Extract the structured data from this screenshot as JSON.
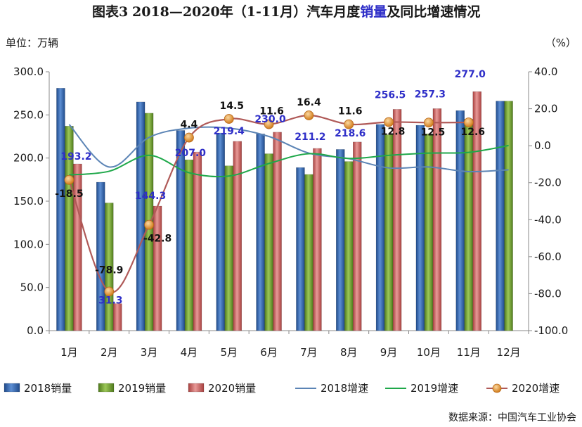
{
  "chart_data": {
    "type": "bar",
    "title": {
      "prefix": "图表3",
      "main": "2018—2020年（1-11月）汽车月度",
      "highlight": "销量",
      "suffix": "及同比增速情况"
    },
    "left_unit": "单位：万辆",
    "right_unit": "（%）",
    "categories": [
      "1月",
      "2月",
      "3月",
      "4月",
      "5月",
      "6月",
      "7月",
      "8月",
      "9月",
      "10月",
      "11月",
      "12月"
    ],
    "y_left": {
      "min": 0,
      "max": 300,
      "step": 50,
      "ticks": [
        "0.0",
        "50.0",
        "100.0",
        "150.0",
        "200.0",
        "250.0",
        "300.0"
      ]
    },
    "y_right": {
      "min": -100,
      "max": 40,
      "step": 20,
      "ticks": [
        "-100.0",
        "-80.0",
        "-60.0",
        "-40.0",
        "-20.0",
        "0.0",
        "20.0",
        "40.0"
      ]
    },
    "bar_series": [
      {
        "name": "2018销量",
        "color": "#2e5fa8",
        "values": [
          281,
          172,
          265,
          232,
          229,
          228,
          189,
          210,
          239,
          238,
          255,
          266
        ]
      },
      {
        "name": "2019销量",
        "color": "#6a9a2a",
        "values": [
          237,
          148,
          252,
          198,
          191,
          205,
          181,
          196,
          227,
          228,
          245,
          266
        ]
      },
      {
        "name": "2020销量",
        "color": "#c85a5a",
        "values": [
          193.2,
          31.3,
          144.3,
          207.0,
          219.4,
          230.0,
          211.2,
          218.6,
          256.5,
          257.3,
          277.0,
          null
        ],
        "labels": [
          "193.2",
          "31.3",
          "144.3",
          "207.0",
          "219.4",
          "230.0",
          "211.2",
          "218.6",
          "256.5",
          "257.3",
          "277.0",
          ""
        ]
      }
    ],
    "line_series": [
      {
        "name": "2018增速",
        "color": "#5b84b5",
        "values": [
          11.5,
          -11.5,
          4.5,
          9.5,
          9.5,
          5,
          -4,
          -7,
          -12,
          -11.5,
          -14,
          -13
        ]
      },
      {
        "name": "2019增速",
        "color": "#1fa84a",
        "values": [
          -15.8,
          -13.8,
          -5.2,
          -14.6,
          -16.4,
          -9.6,
          -4.3,
          -6.9,
          -5.2,
          -4.0,
          -3.6,
          0.1
        ]
      },
      {
        "name": "2020增速",
        "color": "#b05a58",
        "marker_color": "#e8922a",
        "values": [
          -18.5,
          -78.9,
          -42.8,
          4.4,
          14.5,
          11.6,
          16.4,
          11.6,
          12.8,
          12.5,
          12.6,
          null
        ],
        "labels": [
          "-18.5",
          "-78.9",
          "-42.8",
          "4.4",
          "14.5",
          "11.6",
          "16.4",
          "11.6",
          "12.8",
          "12.5",
          "12.6",
          ""
        ]
      }
    ],
    "legend_position": "bottom",
    "grid": false,
    "source": "数据来源：中国汽车工业协会"
  }
}
